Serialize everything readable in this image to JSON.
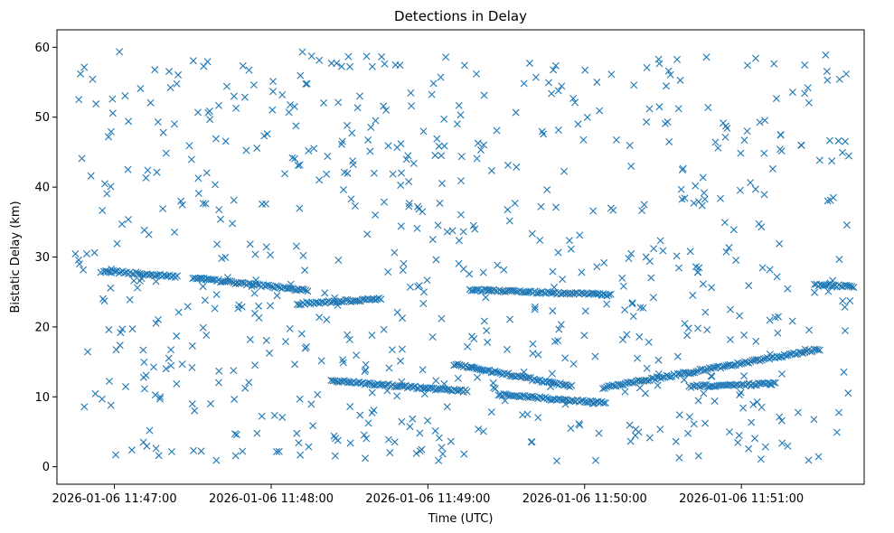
{
  "chart_data": {
    "type": "scatter",
    "title": "Detections in Delay",
    "xlabel": "Time (UTC)",
    "ylabel": "Bistatic Delay (km)",
    "marker": "x",
    "color": "#1f77b4",
    "xlim": [
      "2026-01-06 11:46:38",
      "2026-01-06 11:51:47"
    ],
    "ylim": [
      -2.5,
      62.5
    ],
    "xticks": [
      "2026-01-06 11:47:00",
      "2026-01-06 11:48:00",
      "2026-01-06 11:49:00",
      "2026-01-06 11:50:00",
      "2026-01-06 11:51:00"
    ],
    "yticks": [
      0,
      10,
      20,
      30,
      40,
      50,
      60
    ],
    "grid": false,
    "tracks": [
      {
        "start": "2026-01-06 11:46:56",
        "end": "2026-01-06 11:47:24",
        "delay_start": 28.0,
        "delay_end": 27.2
      },
      {
        "start": "2026-01-06 11:47:30",
        "end": "2026-01-06 11:48:14",
        "delay_start": 27.0,
        "delay_end": 25.2
      },
      {
        "start": "2026-01-06 11:48:10",
        "end": "2026-01-06 11:48:42",
        "delay_start": 23.3,
        "delay_end": 24.0
      },
      {
        "start": "2026-01-06 11:48:23",
        "end": "2026-01-06 11:49:15",
        "delay_start": 12.3,
        "delay_end": 10.8
      },
      {
        "start": "2026-01-06 11:49:10",
        "end": "2026-01-06 11:49:55",
        "delay_start": 14.6,
        "delay_end": 11.5
      },
      {
        "start": "2026-01-06 11:49:16",
        "end": "2026-01-06 11:50:10",
        "delay_start": 25.3,
        "delay_end": 24.6
      },
      {
        "start": "2026-01-06 11:49:27",
        "end": "2026-01-06 11:50:08",
        "delay_start": 10.3,
        "delay_end": 9.1
      },
      {
        "start": "2026-01-06 11:50:07",
        "end": "2026-01-06 11:51:30",
        "delay_start": 11.3,
        "delay_end": 16.8
      },
      {
        "start": "2026-01-06 11:50:40",
        "end": "2026-01-06 11:51:13",
        "delay_start": 11.5,
        "delay_end": 11.9
      },
      {
        "start": "2026-01-06 11:51:28",
        "end": "2026-01-06 11:51:43",
        "delay_start": 26.0,
        "delay_end": 25.8
      }
    ],
    "clutter_points": 720
  }
}
